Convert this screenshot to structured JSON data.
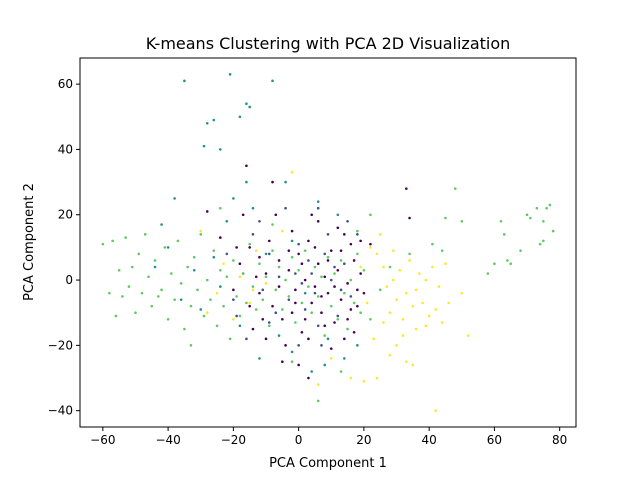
{
  "chart_data": {
    "type": "scatter",
    "title": "K-means Clustering with PCA 2D Visualization",
    "xlabel": "PCA Component 1",
    "ylabel": "PCA Component 2",
    "xlim": [
      -67,
      85
    ],
    "ylim": [
      -45,
      68
    ],
    "xticks": [
      -60,
      -40,
      -20,
      0,
      20,
      40,
      60,
      80
    ],
    "yticks": [
      -40,
      -20,
      0,
      20,
      40,
      60
    ],
    "grid": false,
    "legend": "none",
    "series": [
      {
        "color": "#440154",
        "points": [
          [
            -18,
            5
          ],
          [
            -15,
            10
          ],
          [
            -12,
            -4
          ],
          [
            -10,
            2
          ],
          [
            -8,
            -8
          ],
          [
            -6,
            6
          ],
          [
            -5,
            -12
          ],
          [
            -3,
            3
          ],
          [
            -1,
            -3
          ],
          [
            0,
            8
          ],
          [
            1,
            -16
          ],
          [
            2,
            0
          ],
          [
            3,
            12
          ],
          [
            4,
            -7
          ],
          [
            5,
            -2
          ],
          [
            6,
            5
          ],
          [
            7,
            -10
          ],
          [
            8,
            1
          ],
          [
            9,
            -4
          ],
          [
            10,
            9
          ],
          [
            11,
            -13
          ],
          [
            12,
            3
          ],
          [
            13,
            -6
          ],
          [
            14,
            14
          ],
          [
            15,
            -1
          ],
          [
            16,
            -9
          ],
          [
            17,
            6
          ],
          [
            18,
            -3
          ],
          [
            -14,
            -15
          ],
          [
            -9,
            12
          ],
          [
            -4,
            -20
          ],
          [
            -2,
            15
          ],
          [
            3,
            -18
          ],
          [
            6,
            18
          ],
          [
            10,
            -21
          ],
          [
            12,
            16
          ],
          [
            -7,
            20
          ],
          [
            -11,
            -12
          ],
          [
            0,
            -26
          ],
          [
            4,
            20
          ],
          [
            -16,
            35
          ],
          [
            -8,
            30
          ],
          [
            -2,
            -10
          ],
          [
            1,
            5
          ],
          [
            8,
            -14
          ],
          [
            14,
            -18
          ],
          [
            -13,
            1
          ],
          [
            -6,
            -2
          ],
          [
            16,
            11
          ],
          [
            19,
            2
          ],
          [
            -20,
            -3
          ],
          [
            18,
            -8
          ],
          [
            -3,
            9
          ],
          [
            9,
            6
          ],
          [
            -12,
            7
          ],
          [
            5,
            10
          ],
          [
            7,
            -5
          ],
          [
            11,
            -2
          ],
          [
            -19,
            10
          ],
          [
            2,
            -12
          ],
          [
            20,
            -4
          ],
          [
            -15,
            -8
          ],
          [
            13,
            9
          ],
          [
            -1,
            -7
          ],
          [
            33,
            28
          ],
          [
            34,
            19
          ],
          [
            22,
            11
          ],
          [
            -28,
            21
          ],
          [
            -24,
            13
          ],
          [
            -10,
            -18
          ],
          [
            -5,
            -25
          ],
          [
            3,
            -30
          ],
          [
            15,
            -12
          ],
          [
            17,
            -16
          ],
          [
            -17,
            20
          ],
          [
            19,
            12
          ]
        ]
      },
      {
        "color": "#3b528b",
        "points": [
          [
            -22,
            8
          ],
          [
            -20,
            -6
          ],
          [
            -17,
            2
          ],
          [
            -14,
            14
          ],
          [
            -11,
            -3
          ],
          [
            -9,
            -13
          ],
          [
            -6,
            1
          ],
          [
            -3,
            -6
          ],
          [
            0,
            11
          ],
          [
            2,
            -9
          ],
          [
            4,
            2
          ],
          [
            6,
            -14
          ],
          [
            8,
            8
          ],
          [
            10,
            0
          ],
          [
            12,
            -11
          ],
          [
            14,
            5
          ],
          [
            16,
            -5
          ],
          [
            18,
            14
          ],
          [
            -12,
            18
          ],
          [
            -4,
            22
          ],
          [
            6,
            22
          ],
          [
            -16,
            -18
          ],
          [
            0,
            -20
          ],
          [
            9,
            14
          ],
          [
            -7,
            -10
          ],
          [
            3,
            6
          ],
          [
            11,
            4
          ],
          [
            -1,
            2
          ],
          [
            5,
            -4
          ],
          [
            13,
            -3
          ],
          [
            -19,
            -11
          ],
          [
            15,
            18
          ],
          [
            7,
            -20
          ],
          [
            -9,
            8
          ],
          [
            1,
            -1
          ]
        ]
      },
      {
        "color": "#21918c",
        "points": [
          [
            -36,
            -6
          ],
          [
            -32,
            3
          ],
          [
            -30,
            -9
          ],
          [
            -26,
            7
          ],
          [
            -24,
            -2
          ],
          [
            -22,
            18
          ],
          [
            -18,
            -14
          ],
          [
            -14,
            22
          ],
          [
            -10,
            8
          ],
          [
            -6,
            -17
          ],
          [
            -2,
            12
          ],
          [
            2,
            -4
          ],
          [
            6,
            24
          ],
          [
            9,
            -18
          ],
          [
            -8,
            61
          ],
          [
            -29,
            41
          ],
          [
            -28,
            48
          ],
          [
            -26,
            49
          ],
          [
            -24,
            40
          ],
          [
            -21,
            63
          ],
          [
            -18,
            50
          ],
          [
            -16,
            54
          ],
          [
            -15,
            53
          ],
          [
            -35,
            61
          ],
          [
            -40,
            10
          ],
          [
            -42,
            17
          ],
          [
            -44,
            4
          ],
          [
            -38,
            25
          ],
          [
            -12,
            -24
          ],
          [
            -20,
            25
          ],
          [
            -4,
            30
          ],
          [
            4,
            -28
          ],
          [
            8,
            -26
          ],
          [
            -16,
            30
          ],
          [
            12,
            20
          ],
          [
            14,
            -24
          ],
          [
            -2,
            -22
          ],
          [
            18,
            -20
          ]
        ]
      },
      {
        "color": "#5ec962",
        "points": [
          [
            -60,
            11
          ],
          [
            -57,
            12
          ],
          [
            -56,
            -11
          ],
          [
            -54,
            -5
          ],
          [
            -53,
            13
          ],
          [
            -51,
            4
          ],
          [
            -50,
            -10
          ],
          [
            -48,
            -4
          ],
          [
            -47,
            14
          ],
          [
            -46,
            1
          ],
          [
            -45,
            -8
          ],
          [
            -44,
            6
          ],
          [
            -42,
            -3
          ],
          [
            -41,
            10
          ],
          [
            -40,
            -12
          ],
          [
            -39,
            2
          ],
          [
            -38,
            -6
          ],
          [
            -37,
            12
          ],
          [
            -36,
            -1
          ],
          [
            -35,
            -15
          ],
          [
            -34,
            4
          ],
          [
            -33,
            -8
          ],
          [
            -32,
            7
          ],
          [
            -31,
            -3
          ],
          [
            -30,
            14
          ],
          [
            -29,
            -11
          ],
          [
            -28,
            0
          ],
          [
            -27,
            -6
          ],
          [
            -26,
            9
          ],
          [
            -25,
            -14
          ],
          [
            -24,
            3
          ],
          [
            -23,
            -8
          ],
          [
            -22,
            1
          ],
          [
            -21,
            -18
          ],
          [
            -20,
            6
          ],
          [
            -19,
            -5
          ],
          [
            -18,
            -11
          ],
          [
            -17,
            2
          ],
          [
            -16,
            -7
          ],
          [
            -15,
            11
          ],
          [
            -14,
            -2
          ],
          [
            -13,
            -9
          ],
          [
            -12,
            5
          ],
          [
            -11,
            -6
          ],
          [
            -10,
            1
          ],
          [
            -9,
            -14
          ],
          [
            -8,
            9
          ],
          [
            -7,
            -3
          ],
          [
            -6,
            4
          ],
          [
            -5,
            -9
          ],
          [
            -4,
            0
          ],
          [
            -3,
            -5
          ],
          [
            -2,
            7
          ],
          [
            -1,
            -13
          ],
          [
            0,
            3
          ],
          [
            1,
            -7
          ],
          [
            2,
            9
          ],
          [
            3,
            -2
          ],
          [
            4,
            -10
          ],
          [
            5,
            4
          ],
          [
            6,
            -5
          ],
          [
            7,
            1
          ],
          [
            8,
            -17
          ],
          [
            9,
            7
          ],
          [
            10,
            -8
          ],
          [
            11,
            2
          ],
          [
            12,
            -12
          ],
          [
            13,
            6
          ],
          [
            14,
            -4
          ],
          [
            15,
            -15
          ],
          [
            16,
            0
          ],
          [
            17,
            -7
          ],
          [
            18,
            8
          ],
          [
            19,
            -10
          ],
          [
            20,
            3
          ],
          [
            -58,
            -4
          ],
          [
            -55,
            3
          ],
          [
            -52,
            -2
          ],
          [
            -49,
            8
          ],
          [
            -43,
            -5
          ],
          [
            62,
            18
          ],
          [
            63,
            14
          ],
          [
            64,
            6
          ],
          [
            65,
            5
          ],
          [
            68,
            9
          ],
          [
            70,
            20
          ],
          [
            73,
            22
          ],
          [
            75,
            18
          ],
          [
            76,
            22
          ],
          [
            77,
            23
          ],
          [
            78,
            15
          ],
          [
            75,
            12
          ],
          [
            74,
            11
          ],
          [
            71,
            19
          ],
          [
            58,
            2
          ],
          [
            60,
            5
          ],
          [
            50,
            18
          ],
          [
            48,
            28
          ],
          [
            45,
            19
          ],
          [
            41,
            11
          ],
          [
            44,
            9
          ],
          [
            22,
            20
          ],
          [
            28,
            4
          ],
          [
            34,
            8
          ],
          [
            25,
            -3
          ],
          [
            18,
            15
          ],
          [
            -33,
            -20
          ],
          [
            -24,
            22
          ],
          [
            6,
            -37
          ],
          [
            -2,
            -25
          ],
          [
            13,
            -28
          ],
          [
            -8,
            17
          ],
          [
            22,
            -12
          ]
        ]
      },
      {
        "color": "#fde725",
        "points": [
          [
            -28,
            -10
          ],
          [
            -25,
            -4
          ],
          [
            -23,
            5
          ],
          [
            -20,
            -12
          ],
          [
            -18,
            1
          ],
          [
            -15,
            -7
          ],
          [
            -13,
            9
          ],
          [
            -10,
            -1
          ],
          [
            -5,
            15
          ],
          [
            -2,
            33
          ],
          [
            6,
            -32
          ],
          [
            10,
            -24
          ],
          [
            16,
            -30
          ],
          [
            20,
            -31
          ],
          [
            24,
            -30
          ],
          [
            22,
            10
          ],
          [
            24,
            8
          ],
          [
            25,
            14
          ],
          [
            26,
            4
          ],
          [
            27,
            -2
          ],
          [
            28,
            -10
          ],
          [
            29,
            0
          ],
          [
            30,
            -6
          ],
          [
            31,
            3
          ],
          [
            32,
            -12
          ],
          [
            33,
            -4
          ],
          [
            34,
            6
          ],
          [
            35,
            -8
          ],
          [
            36,
            -15
          ],
          [
            37,
            2
          ],
          [
            38,
            -7
          ],
          [
            39,
            0
          ],
          [
            40,
            -11
          ],
          [
            41,
            4
          ],
          [
            42,
            -9
          ],
          [
            43,
            -2
          ],
          [
            44,
            -13
          ],
          [
            45,
            5
          ],
          [
            46,
            -7
          ],
          [
            50,
            -4
          ],
          [
            52,
            -17
          ],
          [
            42,
            -40
          ],
          [
            33,
            -25
          ],
          [
            35,
            -26
          ],
          [
            30,
            -20
          ],
          [
            23,
            -18
          ],
          [
            21,
            -7
          ],
          [
            19,
            4
          ],
          [
            26,
            -13
          ],
          [
            29,
            9
          ],
          [
            32,
            -17
          ],
          [
            36,
            -3
          ],
          [
            39,
            -14
          ],
          [
            28,
            -23
          ],
          [
            -30,
            15
          ],
          [
            -14,
            -3
          ]
        ]
      }
    ]
  }
}
